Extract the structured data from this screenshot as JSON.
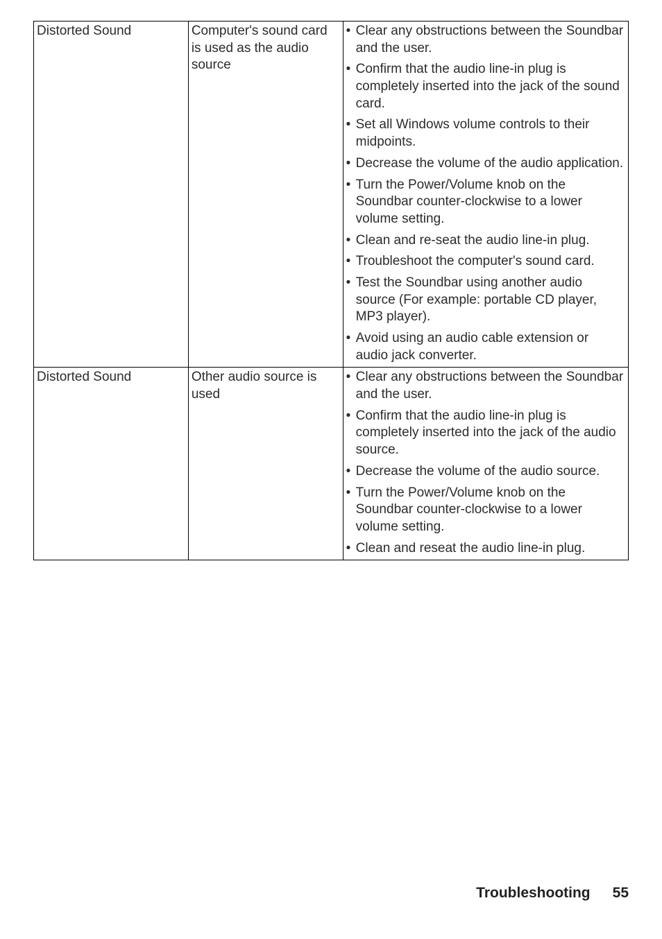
{
  "table": {
    "rows": [
      {
        "problem": "Distorted Sound",
        "cause": "Computer's sound card is used as the audio source",
        "solutions": [
          "Clear any obstructions between the Soundbar and the user.",
          "Confirm that the audio line-in plug is completely inserted into the jack of the sound card.",
          "Set all Windows volume controls to their midpoints.",
          "Decrease the volume of the audio application.",
          "Turn the Power/Volume knob on the Soundbar counter-clockwise to a lower volume setting.",
          "Clean and re-seat the audio line-in plug.",
          "Troubleshoot the computer's sound card.",
          "Test the Soundbar using another audio source (For example: portable CD player, MP3 player).",
          "Avoid using an audio cable extension or audio jack converter."
        ]
      },
      {
        "problem": "Distorted Sound",
        "cause": "Other audio source is used",
        "solutions": [
          "Clear any obstructions between the Soundbar and the user.",
          "Confirm that the audio line-in plug is completely inserted into the jack of the audio source.",
          "Decrease the volume of the audio source.",
          "Turn the Power/Volume knob on the Soundbar counter-clockwise to a lower volume setting.",
          "Clean and reseat the audio line-in plug."
        ]
      }
    ]
  },
  "footer": {
    "section": "Troubleshooting",
    "page": "55"
  }
}
